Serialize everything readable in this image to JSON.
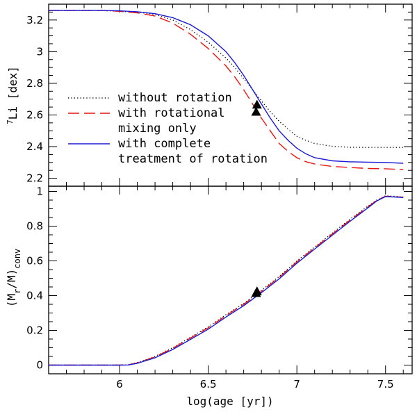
{
  "chart_data": [
    {
      "type": "line",
      "panel": "top",
      "xlabel": "",
      "ylabel_parts": {
        "sup": "7",
        "main": "Li [dex]"
      },
      "xlim": [
        5.6,
        7.65
      ],
      "ylim": [
        2.15,
        3.3
      ],
      "xticks": [
        6,
        6.5,
        7,
        7.5
      ],
      "xtick_labels": [
        "",
        "",
        "",
        ""
      ],
      "yticks": [
        2.2,
        2.4,
        2.6,
        2.8,
        3.0,
        3.2
      ],
      "ytick_labels": [
        "2.2",
        "2.4",
        "2.6",
        "2.8",
        "3",
        "3.2"
      ],
      "legend": {
        "position": "left",
        "entries": [
          {
            "key": "norot",
            "lines": [
              "without rotation"
            ]
          },
          {
            "key": "mix",
            "lines": [
              "with rotational",
              "mixing only"
            ]
          },
          {
            "key": "full",
            "lines": [
              "with complete",
              "treatment of rotation"
            ]
          }
        ]
      },
      "series": [
        {
          "key": "norot",
          "name": "without rotation",
          "color": "#000000",
          "style": "dotted",
          "x": [
            5.6,
            5.9,
            6.0,
            6.1,
            6.2,
            6.3,
            6.4,
            6.5,
            6.6,
            6.65,
            6.7,
            6.75,
            6.8,
            6.85,
            6.9,
            6.95,
            7.0,
            7.05,
            7.1,
            7.2,
            7.3,
            7.4,
            7.5,
            7.6
          ],
          "y": [
            3.26,
            3.26,
            3.255,
            3.25,
            3.235,
            3.2,
            3.14,
            3.06,
            2.96,
            2.9,
            2.83,
            2.76,
            2.69,
            2.62,
            2.56,
            2.51,
            2.465,
            2.44,
            2.42,
            2.402,
            2.396,
            2.395,
            2.395,
            2.395
          ]
        },
        {
          "key": "mix",
          "name": "with rotational mixing only",
          "color": "#e8140f",
          "style": "dashed",
          "x": [
            5.6,
            5.9,
            6.0,
            6.1,
            6.2,
            6.3,
            6.4,
            6.5,
            6.6,
            6.65,
            6.7,
            6.75,
            6.8,
            6.85,
            6.9,
            6.95,
            7.0,
            7.05,
            7.1,
            7.2,
            7.3,
            7.4,
            7.5,
            7.6
          ],
          "y": [
            3.26,
            3.26,
            3.255,
            3.245,
            3.225,
            3.18,
            3.11,
            3.02,
            2.91,
            2.84,
            2.76,
            2.67,
            2.58,
            2.5,
            2.42,
            2.37,
            2.33,
            2.305,
            2.29,
            2.275,
            2.268,
            2.262,
            2.26,
            2.255
          ]
        },
        {
          "key": "full",
          "name": "with complete treatment of rotation",
          "color": "#1a1ad6",
          "style": "solid",
          "x": [
            5.6,
            5.9,
            6.0,
            6.1,
            6.2,
            6.3,
            6.4,
            6.5,
            6.6,
            6.65,
            6.7,
            6.75,
            6.8,
            6.85,
            6.9,
            6.95,
            7.0,
            7.05,
            7.1,
            7.2,
            7.3,
            7.4,
            7.5,
            7.6
          ],
          "y": [
            3.26,
            3.26,
            3.258,
            3.252,
            3.24,
            3.215,
            3.17,
            3.1,
            3.0,
            2.93,
            2.85,
            2.76,
            2.67,
            2.58,
            2.5,
            2.44,
            2.39,
            2.355,
            2.33,
            2.31,
            2.304,
            2.302,
            2.3,
            2.295
          ]
        }
      ],
      "markers": [
        {
          "x": 6.775,
          "y": 2.665,
          "shape": "triangle",
          "color": "#000000"
        },
        {
          "x": 6.77,
          "y": 2.62,
          "shape": "triangle",
          "color": "#000000"
        }
      ]
    },
    {
      "type": "line",
      "panel": "bottom",
      "xlabel": "log(age [yr])",
      "ylabel_parts": {
        "open": "(M",
        "sub1": "r",
        "mid": "/M)",
        "sub2": "conv"
      },
      "xlim": [
        5.6,
        7.65
      ],
      "ylim": [
        -0.05,
        1.03
      ],
      "xticks": [
        6,
        6.5,
        7,
        7.5
      ],
      "xtick_labels": [
        "6",
        "6.5",
        "7",
        "7.5"
      ],
      "yticks": [
        0,
        0.2,
        0.4,
        0.6,
        0.8,
        1.0
      ],
      "ytick_labels": [
        "0",
        "0.2",
        "0.4",
        "0.6",
        "0.8",
        "1"
      ],
      "series": [
        {
          "key": "norot",
          "name": "without rotation",
          "color": "#000000",
          "style": "dotted",
          "x": [
            5.6,
            6.0,
            6.05,
            6.1,
            6.2,
            6.3,
            6.4,
            6.5,
            6.6,
            6.7,
            6.8,
            6.9,
            7.0,
            7.1,
            7.2,
            7.3,
            7.4,
            7.45,
            7.5,
            7.55,
            7.6
          ],
          "y": [
            0.0,
            0.0,
            0.002,
            0.015,
            0.05,
            0.1,
            0.16,
            0.22,
            0.29,
            0.355,
            0.43,
            0.51,
            0.6,
            0.68,
            0.76,
            0.84,
            0.915,
            0.95,
            0.975,
            0.972,
            0.968
          ]
        },
        {
          "key": "mix",
          "name": "with rotational mixing only",
          "color": "#e8140f",
          "style": "dashed",
          "x": [
            5.6,
            6.0,
            6.05,
            6.1,
            6.2,
            6.3,
            6.4,
            6.5,
            6.6,
            6.7,
            6.8,
            6.9,
            7.0,
            7.1,
            7.2,
            7.3,
            7.4,
            7.45,
            7.5,
            7.55,
            7.6
          ],
          "y": [
            0.0,
            0.0,
            0.002,
            0.013,
            0.047,
            0.097,
            0.156,
            0.215,
            0.285,
            0.35,
            0.425,
            0.505,
            0.595,
            0.675,
            0.755,
            0.835,
            0.91,
            0.948,
            0.972,
            0.97,
            0.966
          ]
        },
        {
          "key": "full",
          "name": "with complete treatment of rotation",
          "color": "#1a1ad6",
          "style": "solid",
          "x": [
            5.6,
            6.0,
            6.05,
            6.1,
            6.2,
            6.3,
            6.4,
            6.5,
            6.6,
            6.7,
            6.8,
            6.9,
            7.0,
            7.1,
            7.2,
            7.3,
            7.4,
            7.45,
            7.5,
            7.55,
            7.6
          ],
          "y": [
            0.0,
            0.0,
            0.001,
            0.01,
            0.042,
            0.09,
            0.148,
            0.207,
            0.277,
            0.342,
            0.417,
            0.497,
            0.587,
            0.668,
            0.748,
            0.828,
            0.905,
            0.945,
            0.97,
            0.968,
            0.965
          ]
        }
      ],
      "markers": [
        {
          "x": 6.775,
          "y": 0.425,
          "shape": "triangle",
          "color": "#000000"
        },
        {
          "x": 6.77,
          "y": 0.415,
          "shape": "triangle",
          "color": "#000000"
        }
      ]
    }
  ]
}
